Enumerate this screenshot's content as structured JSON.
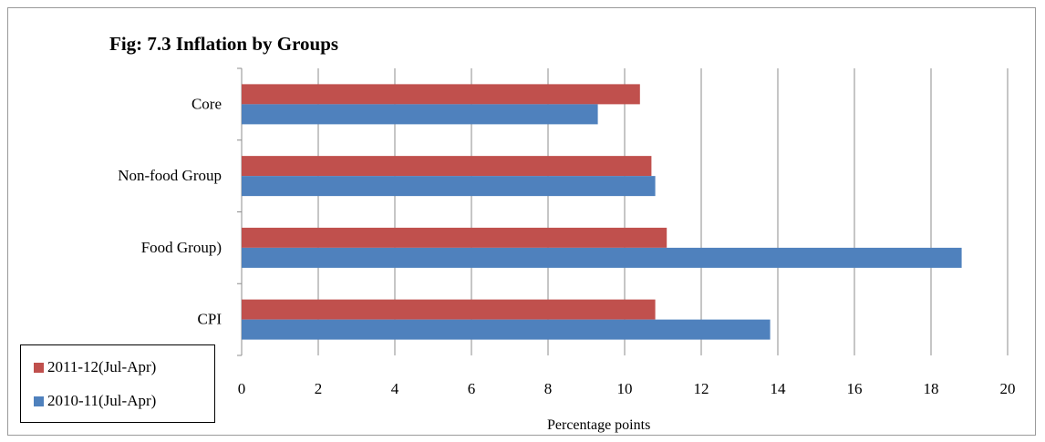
{
  "chart_data": {
    "type": "bar",
    "orientation": "horizontal",
    "title": "Fig: 7.3 Inflation by Groups",
    "xlabel": "Percentage points",
    "ylabel": "",
    "xlim": [
      0,
      20
    ],
    "xticks": [
      0,
      2,
      4,
      6,
      8,
      10,
      12,
      14,
      16,
      18,
      20
    ],
    "grid": "vertical",
    "legend_position": "bottom-left",
    "categories": [
      "Core",
      "Non-food Group",
      "Food Group)",
      "CPI"
    ],
    "series": [
      {
        "name": "2011-12(Jul-Apr)",
        "color": "#c0504d",
        "values": [
          10.4,
          10.7,
          11.1,
          10.8
        ]
      },
      {
        "name": "2010-11(Jul-Apr)",
        "color": "#4f81bd",
        "values": [
          9.3,
          10.8,
          18.8,
          13.8
        ]
      }
    ]
  }
}
